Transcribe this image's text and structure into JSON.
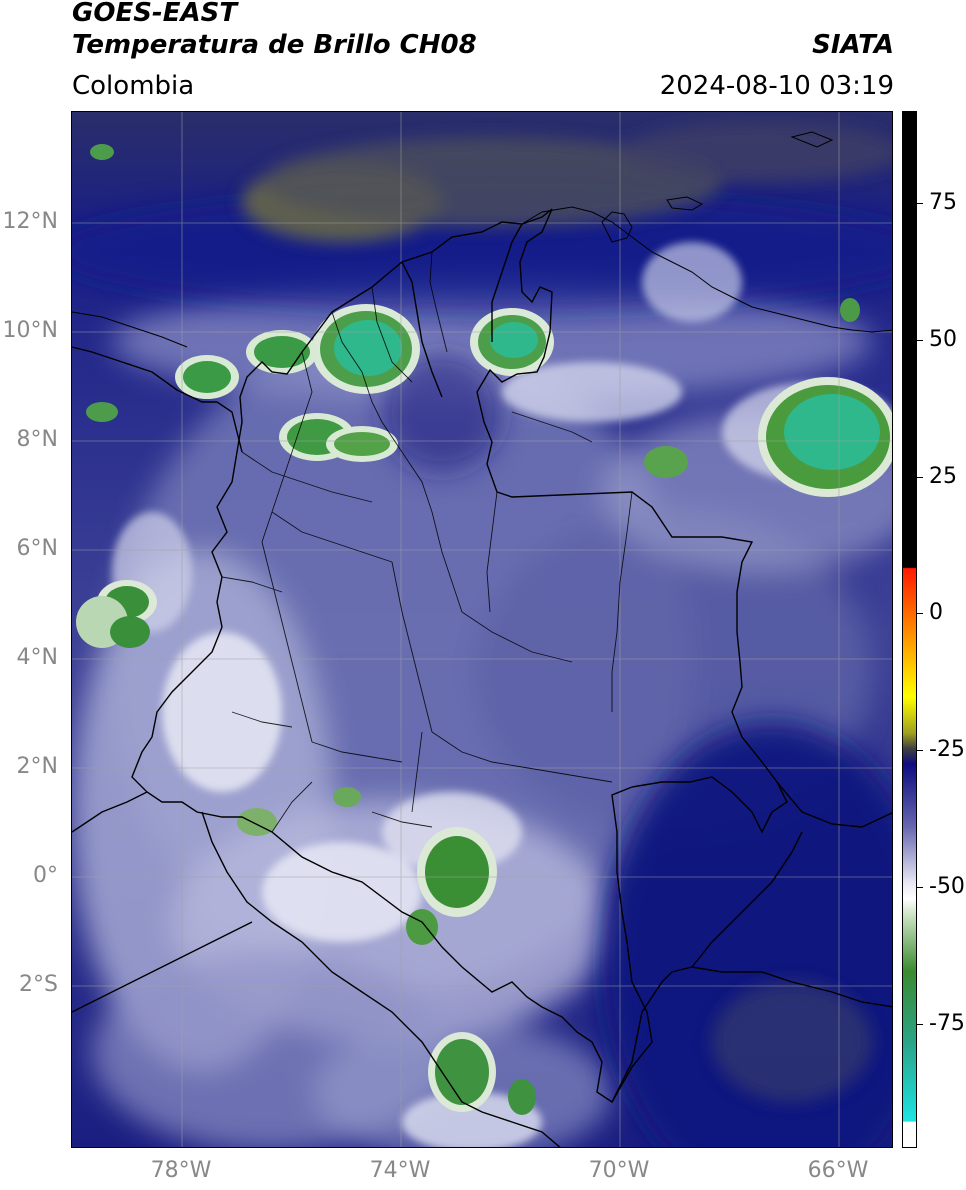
{
  "header": {
    "title_line1": "GOES-EAST",
    "title_line2": "Temperatura de Brillo CH08",
    "organization": "SIATA",
    "region": "Colombia",
    "datetime": "2024-08-10 03:19"
  },
  "map": {
    "lat_labels": [
      "12°N",
      "10°N",
      "8°N",
      "6°N",
      "4°N",
      "2°N",
      "0°",
      "2°S"
    ],
    "lat_values": [
      12,
      10,
      8,
      6,
      4,
      2,
      0,
      -2
    ],
    "lon_labels": [
      "78°W",
      "74°W",
      "70°W",
      "66°W"
    ],
    "lon_values": [
      -78,
      -74,
      -70,
      -66
    ],
    "lon_range": [
      -80,
      -65
    ],
    "lat_range": [
      -5,
      14
    ],
    "colors": {
      "background_deep": "#10147a",
      "cloud_mid": "#6a6fae",
      "cloud_light": "#c9cbe6",
      "cold_green": "#3c8c3a",
      "cold_teal": "#2fb894",
      "warm_olive": "#6e6e3e",
      "border": "#000000",
      "grid": "#9a9a9a"
    }
  },
  "colorbar": {
    "tick_labels": [
      "75",
      "50",
      "25",
      "0",
      "-25",
      "-50",
      "-75"
    ],
    "tick_values": [
      75,
      50,
      25,
      0,
      -25,
      -50,
      -75
    ],
    "range": [
      -97,
      90
    ],
    "colors": [
      "#ffffff",
      "#1de4e4",
      "#2aa58a",
      "#3a8a2e",
      "#dfeeda",
      "#ffffff",
      "#8080b8",
      "#10107a",
      "#404040",
      "#a0a000",
      "#ffff00",
      "#ff9900",
      "#ff0000",
      "#000000"
    ]
  }
}
